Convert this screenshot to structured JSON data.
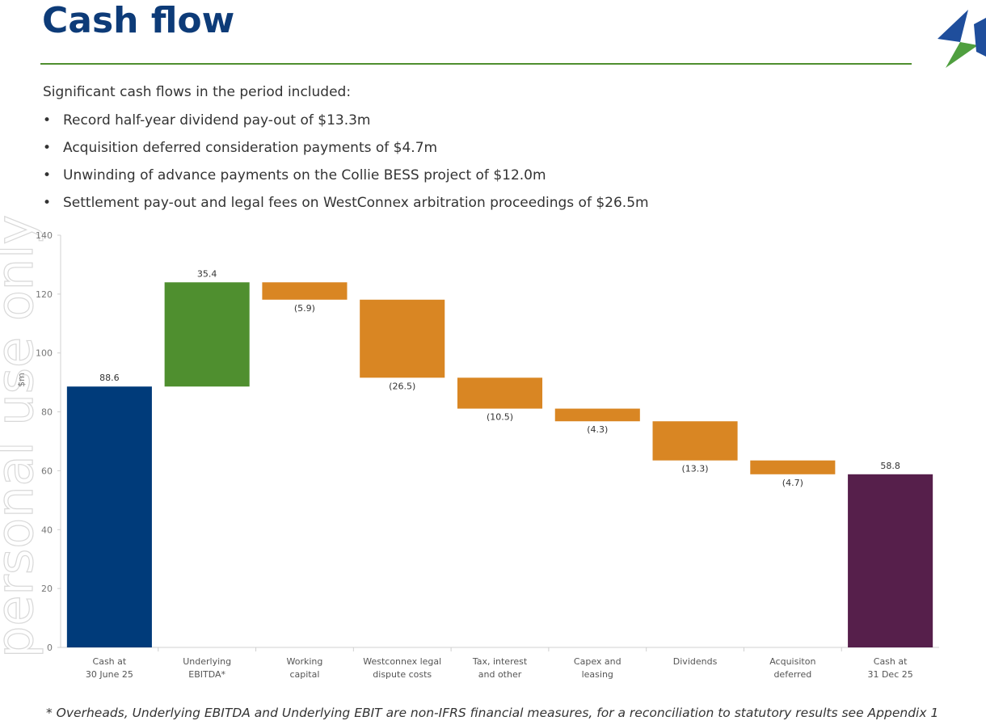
{
  "header": {
    "title": "Cash flow"
  },
  "intro": "Significant cash flows in the period included:",
  "bullets": [
    "Record half-year dividend pay-out of $13.3m",
    "Acquisition deferred consideration payments of $4.7m",
    "Unwinding of advance payments on the Collie BESS project of $12.0m",
    "Settlement pay-out and legal fees on WestConnex arbitration proceedings of $26.5m"
  ],
  "watermark": "personal use only",
  "chart_data": {
    "type": "waterfall",
    "y_label": "$m",
    "categories": [
      "Cash at\n30 June 25",
      "Underlying\nEBITDA*",
      "Working\ncapital",
      "Westconnex legal\ndispute costs",
      "Tax, interest\nand other",
      "Capex and\nleasing",
      "Dividends",
      "Acquisiton\ndeferred",
      "Cash at\n31 Dec 25"
    ],
    "values": [
      88.6,
      35.4,
      -5.9,
      -26.5,
      -10.5,
      -4.3,
      -13.3,
      -4.7,
      58.8
    ],
    "value_labels": [
      "88.6",
      "35.4",
      "(5.9)",
      "(26.5)",
      "(10.5)",
      "(4.3)",
      "(13.3)",
      "(4.7)",
      "58.8"
    ],
    "colors": [
      "#003b7a",
      "#4f8f2f",
      "#d98623",
      "#d98623",
      "#d98623",
      "#d98623",
      "#d98623",
      "#d98623",
      "#561f4b"
    ],
    "ylim": [
      0,
      140
    ],
    "yticks": [
      0,
      20,
      40,
      60,
      80,
      100,
      120,
      140
    ],
    "grid": false
  },
  "footnote": "* Overheads, Underlying EBITDA and Underlying EBIT are non-IFRS financial measures, for a reconciliation to statutory results see Appendix 1"
}
